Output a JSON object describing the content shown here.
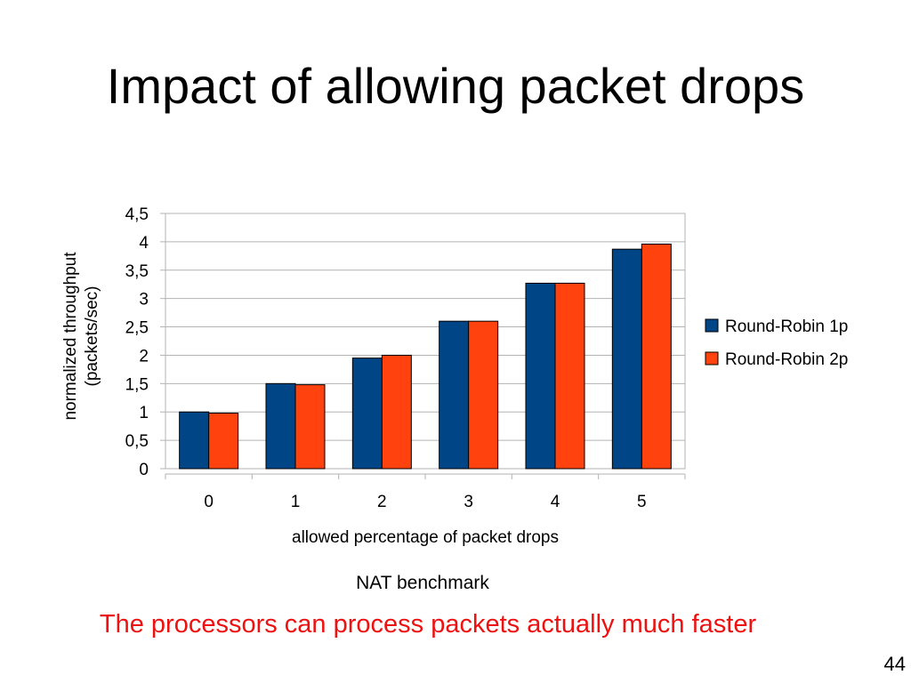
{
  "slide": {
    "title": "Impact of allowing packet drops",
    "benchmark_label": "NAT benchmark",
    "note": "The processors can process packets actually much faster",
    "note_color": "#ee1111",
    "page_number": "44"
  },
  "chart_data": {
    "type": "bar",
    "categories": [
      "0",
      "1",
      "2",
      "3",
      "4",
      "5"
    ],
    "series": [
      {
        "name": "Round-Robin 1p",
        "color": "#004586",
        "values": [
          1.0,
          1.5,
          1.95,
          2.6,
          3.27,
          3.87
        ]
      },
      {
        "name": "Round-Robin 2p",
        "color": "#ff420e",
        "values": [
          0.98,
          1.48,
          2.0,
          2.6,
          3.27,
          3.96
        ]
      }
    ],
    "xlabel": "allowed percentage of packet drops",
    "ylabel": [
      "normalized throughput",
      "(packets/sec)"
    ],
    "ylim": [
      0,
      4.5
    ],
    "yticks": [
      "0",
      "0,5",
      "1",
      "1,5",
      "2",
      "2,5",
      "3",
      "3,5",
      "4",
      "4,5"
    ],
    "grid": true,
    "legend_position": "right"
  }
}
